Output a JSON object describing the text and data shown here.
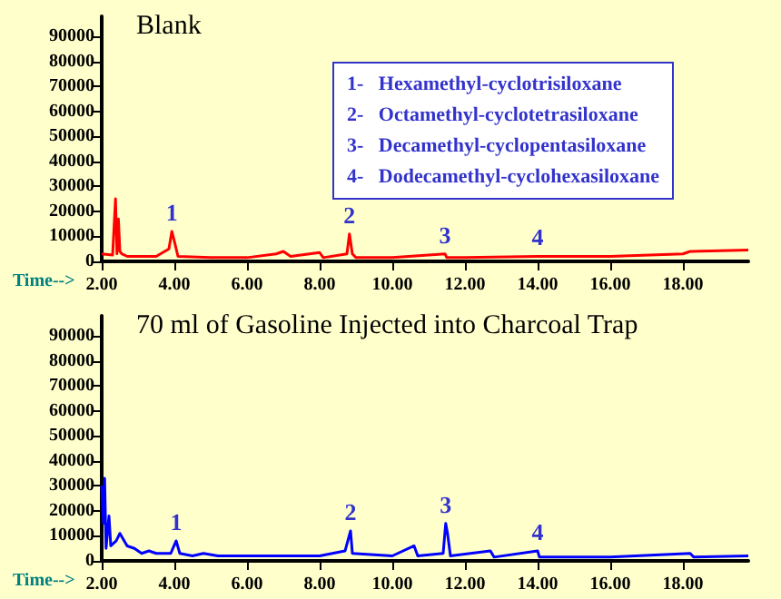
{
  "chart_data": [
    {
      "type": "line",
      "title": "Blank",
      "xlabel": "Time-->",
      "x": [
        2.0,
        2.3,
        2.38,
        2.42,
        2.46,
        2.5,
        2.55,
        2.7,
        3.0,
        3.5,
        3.85,
        3.93,
        4.0,
        4.1,
        5.0,
        6.0,
        6.8,
        7.0,
        7.2,
        8.0,
        8.1,
        8.75,
        8.82,
        8.9,
        9.0,
        10.0,
        11.45,
        11.5,
        12.0,
        14.0,
        16.0,
        18.0,
        18.2,
        19.8
      ],
      "series": [
        {
          "color": "#ff0000",
          "values": [
            3000,
            2500,
            25000,
            3000,
            17000,
            4000,
            3000,
            2000,
            2000,
            2000,
            5000,
            12000,
            8000,
            2000,
            1500,
            1500,
            3000,
            4000,
            2000,
            3500,
            1500,
            3000,
            11000,
            3000,
            1500,
            1500,
            3000,
            1500,
            1500,
            2000,
            2000,
            3000,
            4000,
            4500
          ]
        }
      ],
      "xlim": [
        2,
        19.8
      ],
      "ylim": [
        0,
        98000
      ],
      "xticks": [
        {
          "value": 2,
          "label": "2.00"
        },
        {
          "value": 4,
          "label": "4.00"
        },
        {
          "value": 6,
          "label": "6.00"
        },
        {
          "value": 8,
          "label": "8.00"
        },
        {
          "value": 10,
          "label": "10.00"
        },
        {
          "value": 12,
          "label": "12.00"
        },
        {
          "value": 14,
          "label": "14.00"
        },
        {
          "value": 16,
          "label": "16.00"
        },
        {
          "value": 18,
          "label": "18.00"
        }
      ],
      "yticks": [
        0,
        10000,
        20000,
        30000,
        40000,
        50000,
        60000,
        70000,
        80000,
        90000
      ],
      "annotations": [
        "1-   Hexamethyl-cyclotrisiloxane",
        "2-   Octamethyl-cyclotetrasiloxane",
        "3-   Decamethyl-cyclopentasiloxane",
        "4-   Dodecamethyl-cyclohexasiloxane",
        {
          "text": "1",
          "x": 3.93,
          "y": 12000
        },
        {
          "text": "2",
          "x": 8.82,
          "y": 11000
        },
        {
          "text": "3",
          "x": 11.45,
          "y": 3000
        },
        {
          "text": "4",
          "x": 14.0,
          "y": 2000
        }
      ],
      "grid": false,
      "marker": "none"
    },
    {
      "type": "line",
      "title": "70 ml of Gasoline Injected into Charcoal Trap",
      "xlabel": "Time-->",
      "x": [
        2.0,
        2.05,
        2.08,
        2.12,
        2.2,
        2.25,
        2.4,
        2.5,
        2.7,
        2.9,
        3.1,
        3.3,
        3.5,
        3.9,
        4.05,
        4.15,
        4.5,
        4.8,
        5.2,
        6.0,
        8.0,
        8.7,
        8.85,
        8.9,
        10.0,
        10.6,
        10.7,
        11.4,
        11.47,
        11.52,
        11.6,
        12.7,
        12.8,
        14.0,
        14.05,
        16.0,
        18.2,
        18.3,
        19.8
      ],
      "series": [
        {
          "color": "#0000ff",
          "values": [
            30000,
            15000,
            33000,
            5000,
            18000,
            6000,
            8000,
            11000,
            6000,
            5000,
            3000,
            4000,
            3000,
            3000,
            8000,
            3000,
            2000,
            3000,
            2000,
            2000,
            2000,
            4000,
            12000,
            3000,
            2000,
            6000,
            2000,
            3000,
            15000,
            11000,
            2000,
            4000,
            1500,
            4000,
            1500,
            1500,
            3000,
            1500,
            2000
          ]
        }
      ],
      "xlim": [
        2,
        19.8
      ],
      "ylim": [
        0,
        98000
      ],
      "xticks": [
        {
          "value": 2,
          "label": "2.00"
        },
        {
          "value": 4,
          "label": "4.00"
        },
        {
          "value": 6,
          "label": "6.00"
        },
        {
          "value": 8,
          "label": "8.00"
        },
        {
          "value": 10,
          "label": "10.00"
        },
        {
          "value": 12,
          "label": "12.00"
        },
        {
          "value": 14,
          "label": "14.00"
        },
        {
          "value": 16,
          "label": "16.00"
        },
        {
          "value": 18,
          "label": "18.00"
        }
      ],
      "yticks": [
        0,
        10000,
        20000,
        30000,
        40000,
        50000,
        60000,
        70000,
        80000,
        90000
      ],
      "annotations": [
        {
          "text": "1",
          "x": 4.05,
          "y": 8000
        },
        {
          "text": "2",
          "x": 8.85,
          "y": 12000
        },
        {
          "text": "3",
          "x": 11.47,
          "y": 15000
        },
        {
          "text": "4",
          "x": 14.0,
          "y": 4000
        }
      ],
      "grid": false,
      "marker": "none"
    }
  ]
}
